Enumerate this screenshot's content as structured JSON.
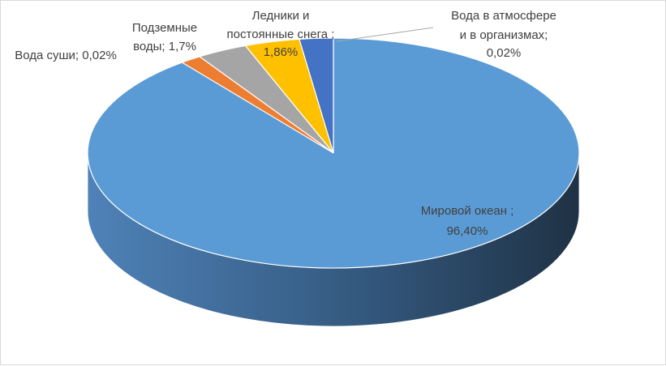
{
  "chart_data": {
    "type": "pie",
    "style": "3d",
    "slices": [
      {
        "label": "Мировой океан",
        "value": 96.4,
        "color": "#5b9bd5",
        "text": [
          "Мировой океан ;",
          "96,40%"
        ]
      },
      {
        "label": "Вода в атмосфере и в организмах",
        "value": 0.02,
        "color": "#4472c4",
        "text": [
          "Вода в атмосфере",
          "и в организмах;",
          "0,02%"
        ]
      },
      {
        "label": "Ледники и постоянные снега",
        "value": 1.86,
        "color": "#ffc000",
        "text": [
          "Ледники и",
          "постоянные снега ;",
          "1,86%"
        ]
      },
      {
        "label": "Подземные воды",
        "value": 1.7,
        "color": "#a5a5a5",
        "text": [
          "Подземные",
          "воды; 1,7%"
        ]
      },
      {
        "label": "Вода суши",
        "value": 0.02,
        "color": "#ed7d31",
        "text": [
          "Вода суши; 0,02%"
        ]
      }
    ]
  }
}
